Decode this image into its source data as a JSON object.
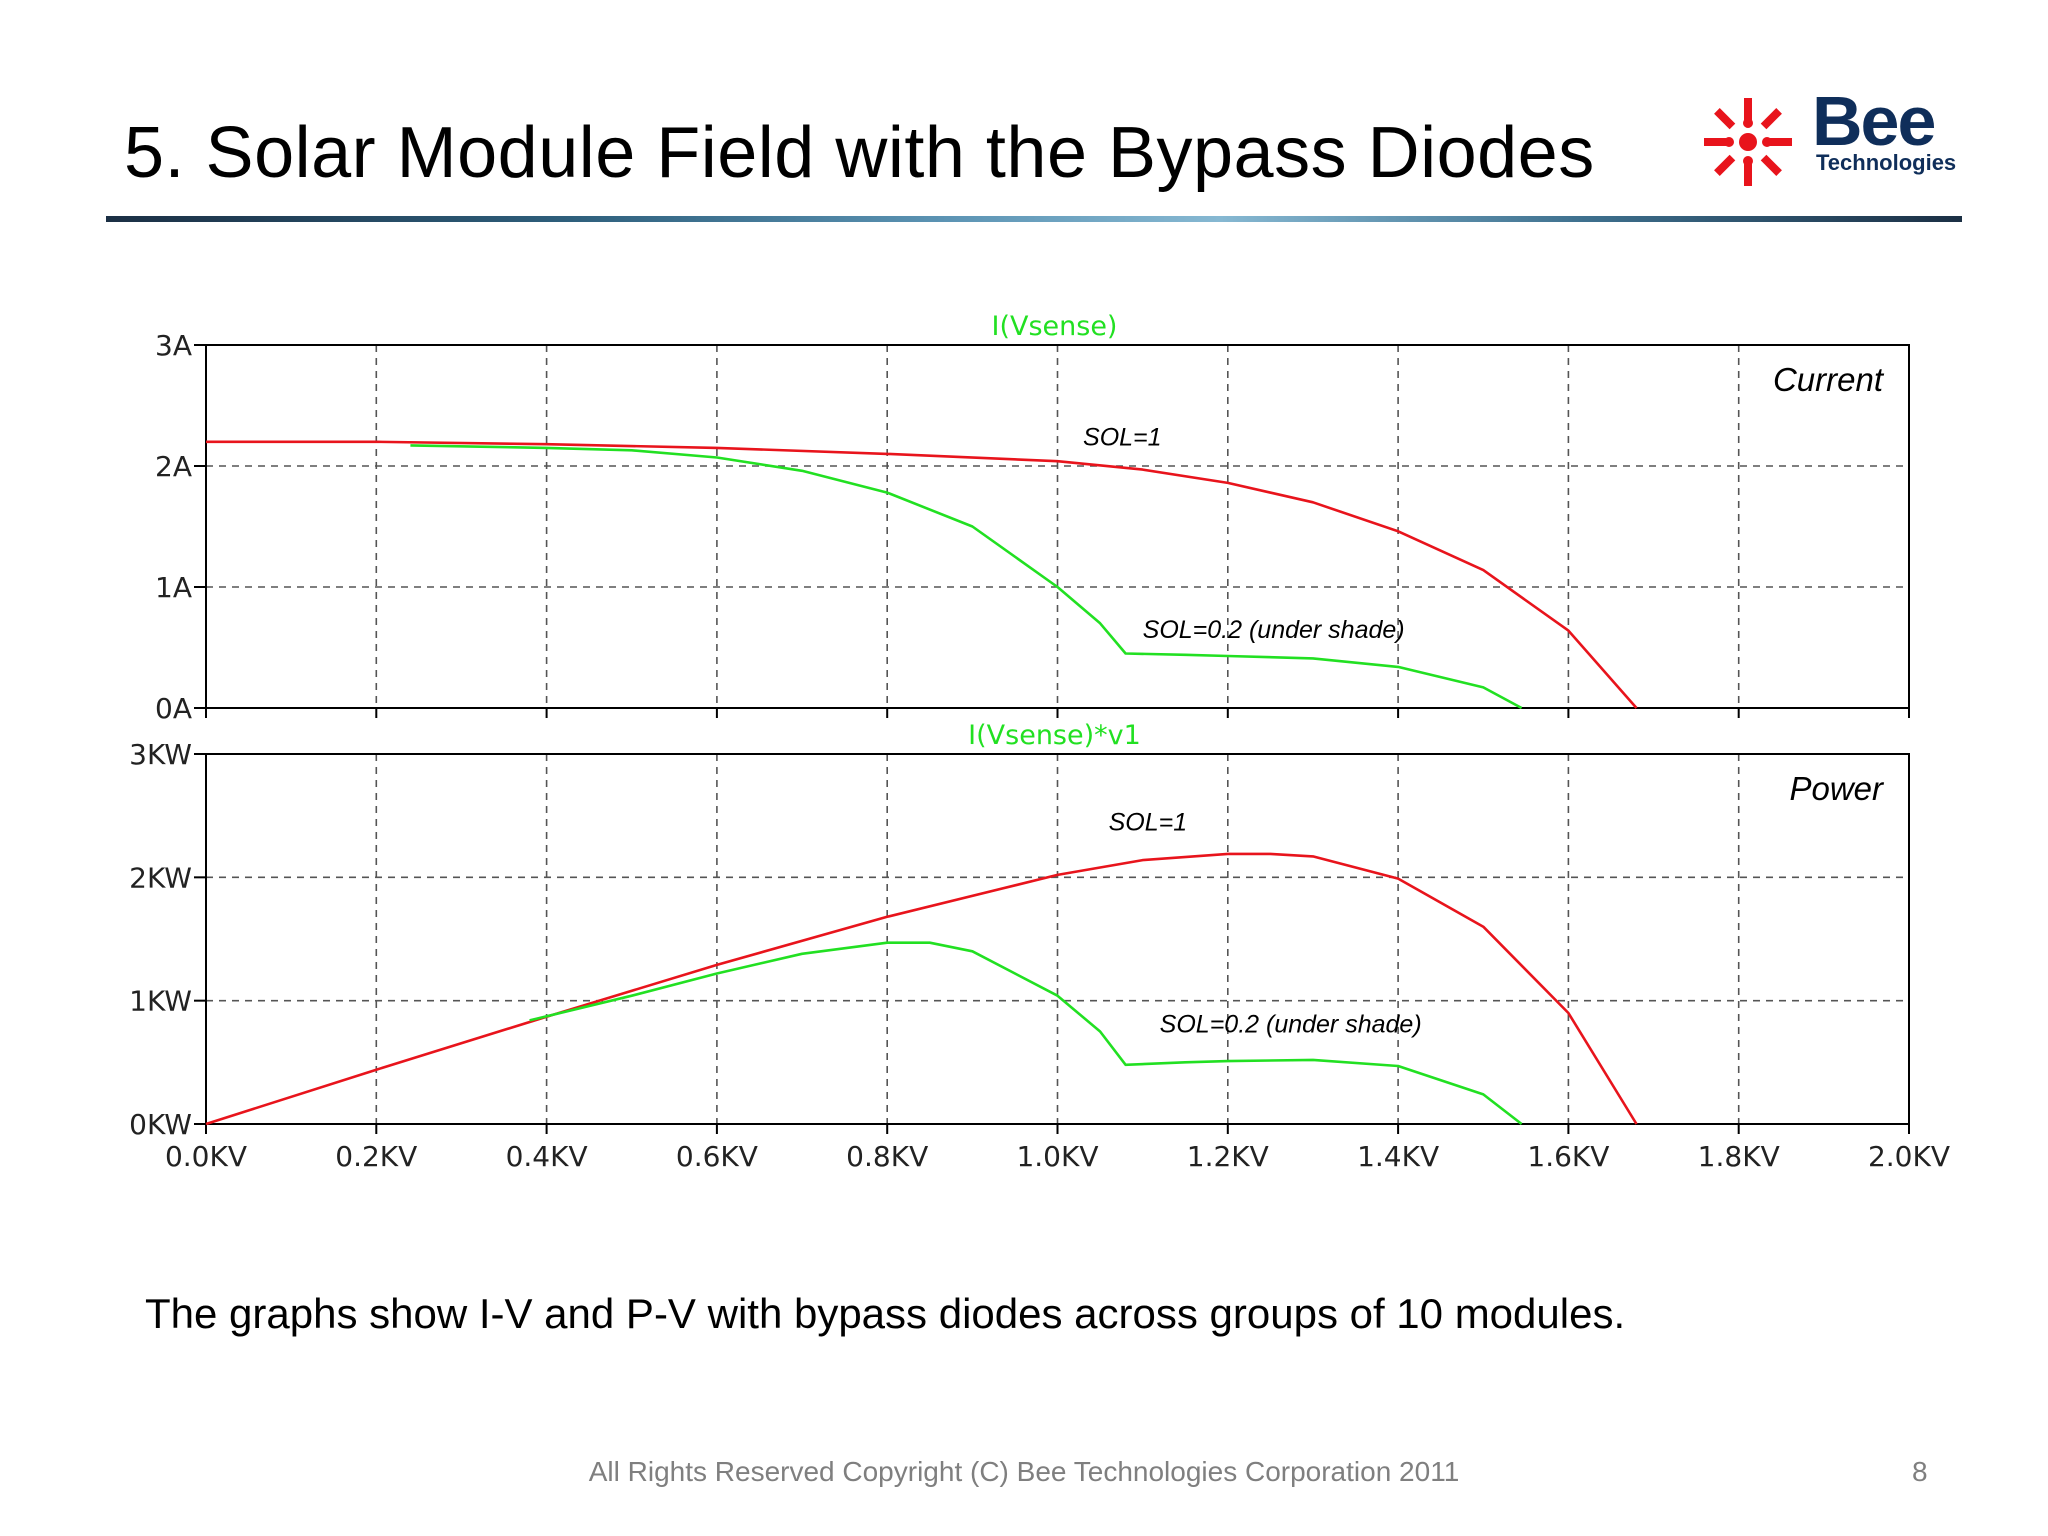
{
  "slide": {
    "title": "5. Solar Module Field with the Bypass Diodes",
    "caption": "The graphs show I-V and P-V with bypass diodes across groups of 10 modules.",
    "footer": "All Rights Reserved Copyright (C) Bee Technologies Corporation 2011",
    "page_number": "8"
  },
  "logo": {
    "name": "Bee",
    "sub": "Technologies",
    "icon": "sunburst-logo-icon",
    "color_red": "#e8141c",
    "color_navy": "#0f2e5a"
  },
  "colors": {
    "sol_1": "#e8141c",
    "sol_02": "#22e022",
    "trace_label": "#22e022",
    "grid": "#555555"
  },
  "chart_data": [
    {
      "type": "line",
      "trace_label": "I(Vsense)",
      "corner_label": "Current",
      "x_ticks": [
        "0.0KV",
        "0.2KV",
        "0.4KV",
        "0.6KV",
        "0.8KV",
        "1.0KV",
        "1.2KV",
        "1.4KV",
        "1.6KV",
        "1.8KV",
        "2.0KV"
      ],
      "y_ticks": [
        "0A",
        "1A",
        "2A",
        "3A"
      ],
      "xlim": [
        0,
        2.0
      ],
      "ylim": [
        0,
        3
      ],
      "grid": true,
      "series": [
        {
          "name": "SOL=1",
          "color_key": "sol_1",
          "x": [
            0,
            0.2,
            0.4,
            0.6,
            0.8,
            1.0,
            1.1,
            1.2,
            1.3,
            1.4,
            1.5,
            1.6,
            1.68
          ],
          "y": [
            2.2,
            2.2,
            2.18,
            2.15,
            2.1,
            2.04,
            1.97,
            1.86,
            1.7,
            1.46,
            1.14,
            0.64,
            0.0
          ]
        },
        {
          "name": "SOL=0.2 (under shade)",
          "color_key": "sol_02",
          "x": [
            0.24,
            0.4,
            0.5,
            0.6,
            0.7,
            0.8,
            0.9,
            1.0,
            1.05,
            1.08,
            1.15,
            1.2,
            1.3,
            1.4,
            1.5,
            1.545
          ],
          "y": [
            2.17,
            2.15,
            2.13,
            2.07,
            1.96,
            1.78,
            1.5,
            1.0,
            0.7,
            0.45,
            0.44,
            0.43,
            0.41,
            0.34,
            0.17,
            0.0
          ]
        }
      ],
      "annotations": [
        {
          "text": "SOL=1",
          "x": 1.03,
          "y": 2.17
        },
        {
          "text": "SOL=0.2 (under shade)",
          "x": 1.1,
          "y": 0.58
        }
      ]
    },
    {
      "type": "line",
      "trace_label": "I(Vsense)*v1",
      "corner_label": "Power",
      "x_ticks": [
        "0.0KV",
        "0.2KV",
        "0.4KV",
        "0.6KV",
        "0.8KV",
        "1.0KV",
        "1.2KV",
        "1.4KV",
        "1.6KV",
        "1.8KV",
        "2.0KV"
      ],
      "y_ticks": [
        "0KW",
        "1KW",
        "2KW",
        "3KW"
      ],
      "xlim": [
        0,
        2.0
      ],
      "ylim": [
        0,
        3
      ],
      "grid": true,
      "series": [
        {
          "name": "SOL=1",
          "color_key": "sol_1",
          "x": [
            0,
            0.2,
            0.4,
            0.6,
            0.8,
            1.0,
            1.1,
            1.2,
            1.25,
            1.3,
            1.4,
            1.5,
            1.6,
            1.68
          ],
          "y": [
            0.0,
            0.44,
            0.87,
            1.29,
            1.68,
            2.02,
            2.14,
            2.19,
            2.19,
            2.17,
            1.99,
            1.6,
            0.9,
            0.0
          ]
        },
        {
          "name": "SOL=0.2 (under shade)",
          "color_key": "sol_02",
          "x": [
            0.38,
            0.5,
            0.6,
            0.7,
            0.8,
            0.85,
            0.9,
            1.0,
            1.05,
            1.08,
            1.15,
            1.2,
            1.3,
            1.4,
            1.5,
            1.545
          ],
          "y": [
            0.84,
            1.04,
            1.22,
            1.38,
            1.47,
            1.47,
            1.4,
            1.04,
            0.75,
            0.48,
            0.5,
            0.51,
            0.52,
            0.47,
            0.24,
            0.0
          ]
        }
      ],
      "annotations": [
        {
          "text": "SOL=1",
          "x": 1.06,
          "y": 2.38
        },
        {
          "text": "SOL=0.2 (under shade)",
          "x": 1.12,
          "y": 0.74
        }
      ]
    }
  ]
}
